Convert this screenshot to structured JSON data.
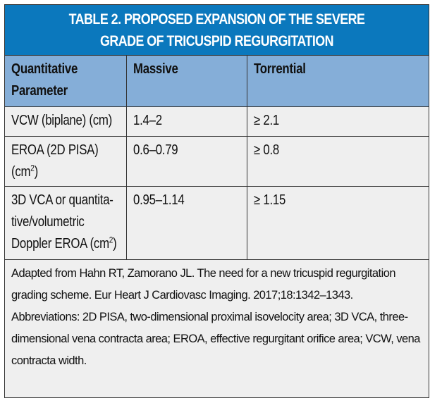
{
  "title": [
    "TABLE 2.  PROPOSED EXPANSION OF THE SEVERE",
    "GRADE OF TRICUSPID REGURGITATION"
  ],
  "headers": [
    "Quantitative\nParameter",
    "Massive",
    "Torrential"
  ],
  "rows": [
    {
      "param": "VCW (biplane) (cm)",
      "massive": "1.4–2",
      "torrential": "≥ 2.1"
    },
    {
      "param": "EROA (2D PISA)\n(cm",
      "param_sup": "2",
      "param_end": ")",
      "massive": "0.6–0.79",
      "torrential": "≥ 0.8"
    },
    {
      "param": "3D VCA or quantita-\ntive/volumetric\nDoppler EROA (cm",
      "param_sup": "2",
      "param_end": ")",
      "massive": "0.95–1.14",
      "torrential": "≥ 1.15"
    }
  ],
  "footnote": {
    "source": "Adapted from Hahn RT, Zamorano JL. The need for a new tricuspid regurgitation grading scheme. Eur Heart J Cardiovasc Imaging. 2017;18:1342–1343.",
    "abbreviations": "Abbreviations: 2D PISA, two-dimensional proximal isovelocity area; 3D VCA, three-dimensional vena contracta area; EROA, effective regurgitant orifice area; VCW, vena contracta width."
  },
  "colors": {
    "title_bg": "#0b78bd",
    "header_bg": "#85aed8",
    "body_bg": "#efefef"
  }
}
